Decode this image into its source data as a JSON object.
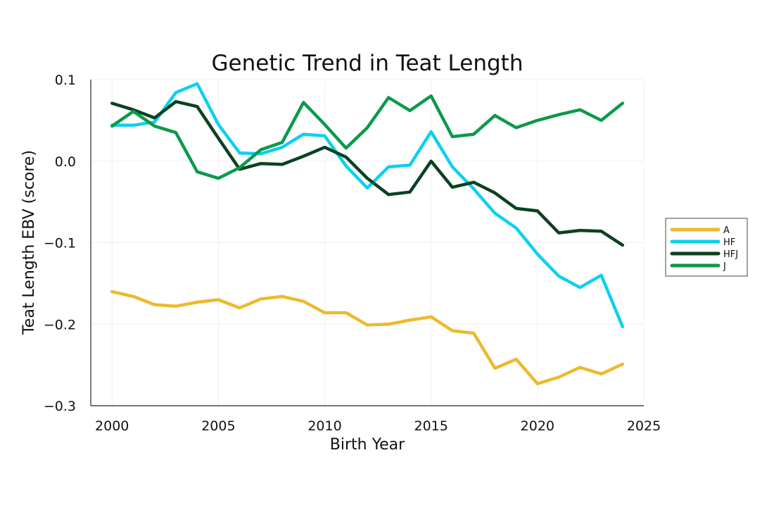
{
  "chart_data": {
    "type": "line",
    "title": "Genetic Trend in Teat Length",
    "xlabel": "Birth Year",
    "ylabel": "Teat Length EBV (score)",
    "xlim": [
      1999,
      2025
    ],
    "ylim": [
      -0.3,
      0.1
    ],
    "x_ticks": [
      2000,
      2005,
      2010,
      2015,
      2020,
      2025
    ],
    "y_ticks": [
      -0.3,
      -0.2,
      -0.1,
      0.0,
      0.1
    ],
    "x_tick_labels": [
      "2000",
      "2005",
      "2010",
      "2015",
      "2020",
      "2025"
    ],
    "y_tick_labels": [
      "−0.3",
      "−0.2",
      "−0.1",
      "0.0",
      "0.1"
    ],
    "grid": true,
    "legend_position": "right",
    "x": [
      2000,
      2001,
      2002,
      2003,
      2004,
      2005,
      2006,
      2007,
      2008,
      2009,
      2010,
      2011,
      2012,
      2013,
      2014,
      2015,
      2016,
      2017,
      2018,
      2019,
      2020,
      2021,
      2022,
      2023,
      2024
    ],
    "series": [
      {
        "name": "A",
        "color": "#EDB92D",
        "values": [
          -0.16,
          -0.166,
          -0.176,
          -0.178,
          -0.173,
          -0.17,
          -0.18,
          -0.169,
          -0.166,
          -0.172,
          -0.186,
          -0.186,
          -0.201,
          -0.2,
          -0.195,
          -0.191,
          -0.208,
          -0.211,
          -0.254,
          -0.243,
          -0.273,
          -0.265,
          -0.253,
          -0.261,
          -0.249
        ]
      },
      {
        "name": "HF",
        "color": "#0DD0EF",
        "values": [
          0.044,
          0.044,
          0.048,
          0.084,
          0.095,
          0.045,
          0.01,
          0.009,
          0.017,
          0.033,
          0.031,
          -0.006,
          -0.033,
          -0.007,
          -0.005,
          0.036,
          -0.007,
          -0.034,
          -0.064,
          -0.082,
          -0.114,
          -0.141,
          -0.155,
          -0.14,
          -0.203
        ]
      },
      {
        "name": "HFJ",
        "color": "#0B4121",
        "values": [
          0.071,
          0.063,
          0.053,
          0.073,
          0.067,
          0.028,
          -0.01,
          -0.003,
          -0.004,
          0.006,
          0.017,
          0.005,
          -0.021,
          -0.041,
          -0.038,
          0.0,
          -0.032,
          -0.026,
          -0.039,
          -0.058,
          -0.061,
          -0.088,
          -0.085,
          -0.086,
          -0.103
        ]
      },
      {
        "name": "J",
        "color": "#0A9A4A",
        "values": [
          0.043,
          0.061,
          0.043,
          0.035,
          -0.013,
          -0.021,
          -0.008,
          0.014,
          0.023,
          0.072,
          0.045,
          0.016,
          0.041,
          0.078,
          0.062,
          0.08,
          0.03,
          0.033,
          0.056,
          0.041,
          0.05,
          0.057,
          0.063,
          0.05,
          0.071
        ]
      }
    ]
  }
}
